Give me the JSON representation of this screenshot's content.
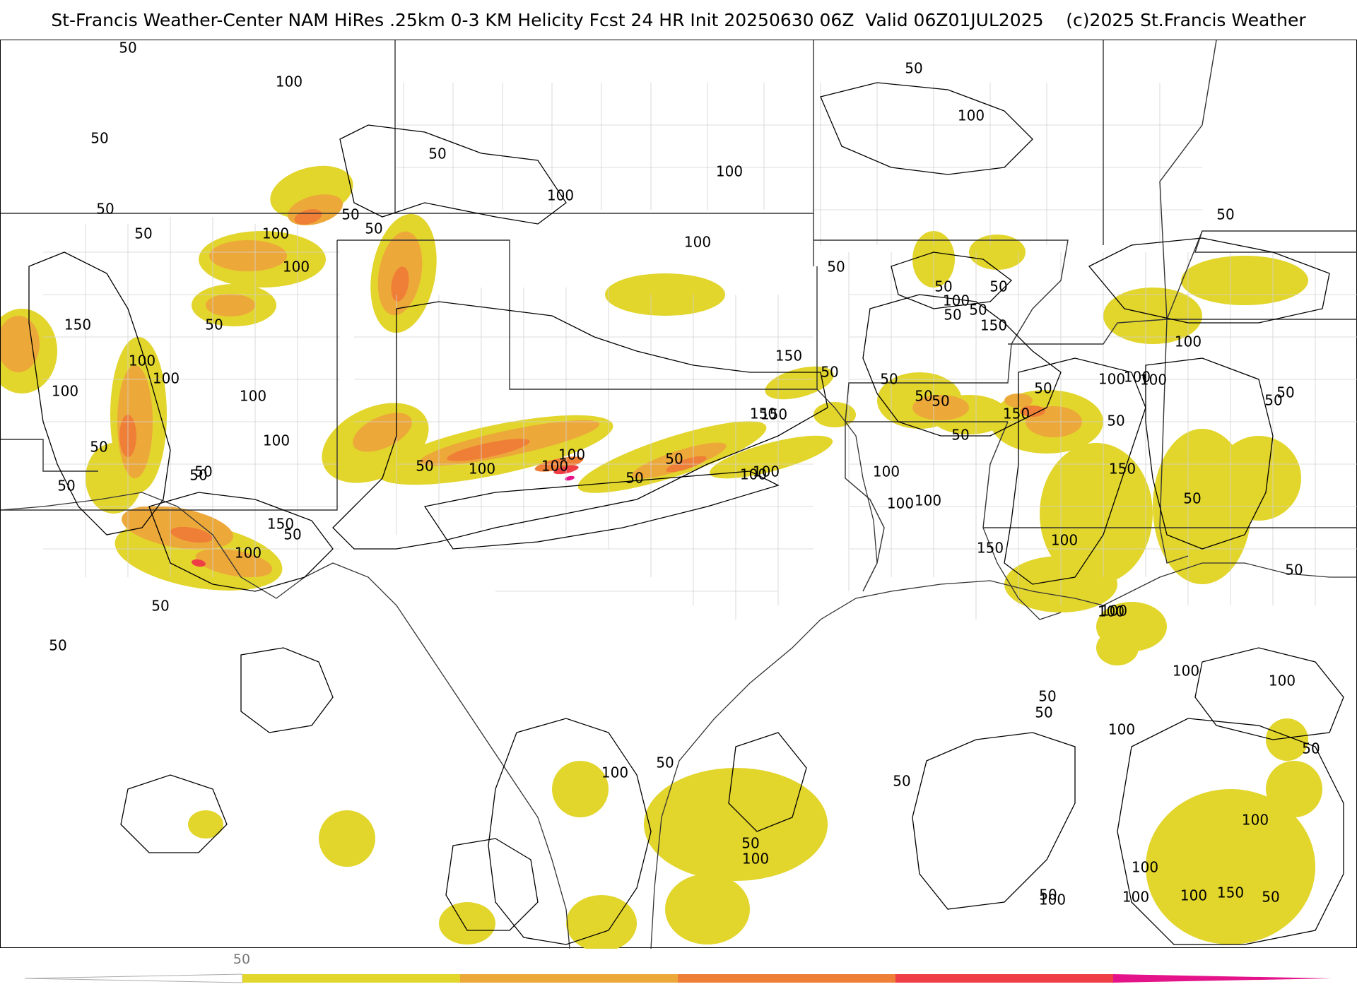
{
  "header": {
    "title": "St-Francis Weather-Center NAM HiRes .25km 0-3 KM Helicity Fcst 24 HR Init 20250630 06Z  Valid 06Z01JUL2025    (c)2025 St.Francis Weather"
  },
  "colors": {
    "level_50_100": "#e2d52c",
    "level_100_150": "#eda83a",
    "level_150_200": "#ef7f36",
    "level_200_250": "#ef3e45",
    "level_250_plus": "#e4138a",
    "contour": "#000000",
    "state_border": "#333333",
    "county_border": "#cfcfcf"
  },
  "colorbar": {
    "tick_labels": [
      "50"
    ],
    "segments": [
      "#e2d52c",
      "#eda83a",
      "#ef7f36",
      "#ef3e45",
      "#e4138a"
    ]
  },
  "contour_labels": [
    "50",
    "100",
    "50",
    "50",
    "50",
    "100",
    "50",
    "50",
    "100",
    "100",
    "50",
    "50",
    "100",
    "50",
    "100",
    "150",
    "50",
    "100",
    "50",
    "100",
    "50",
    "50",
    "50",
    "50",
    "100",
    "150",
    "150",
    "50",
    "100",
    "100",
    "50",
    "50",
    "100",
    "100",
    "50",
    "150",
    "50",
    "100",
    "50",
    "50",
    "100",
    "50",
    "100",
    "100",
    "50",
    "50",
    "150",
    "100",
    "50",
    "100",
    "100",
    "50",
    "150",
    "50",
    "100",
    "50",
    "50",
    "100",
    "150",
    "100",
    "50",
    "100",
    "50",
    "100",
    "150",
    "100",
    "100",
    "150",
    "100",
    "50",
    "100",
    "50",
    "50",
    "50",
    "50",
    "50",
    "50",
    "100",
    "100",
    "100",
    "50",
    "100",
    "100",
    "50",
    "100",
    "50",
    "100",
    "50",
    "150",
    "100",
    "100",
    "50",
    "100"
  ]
}
